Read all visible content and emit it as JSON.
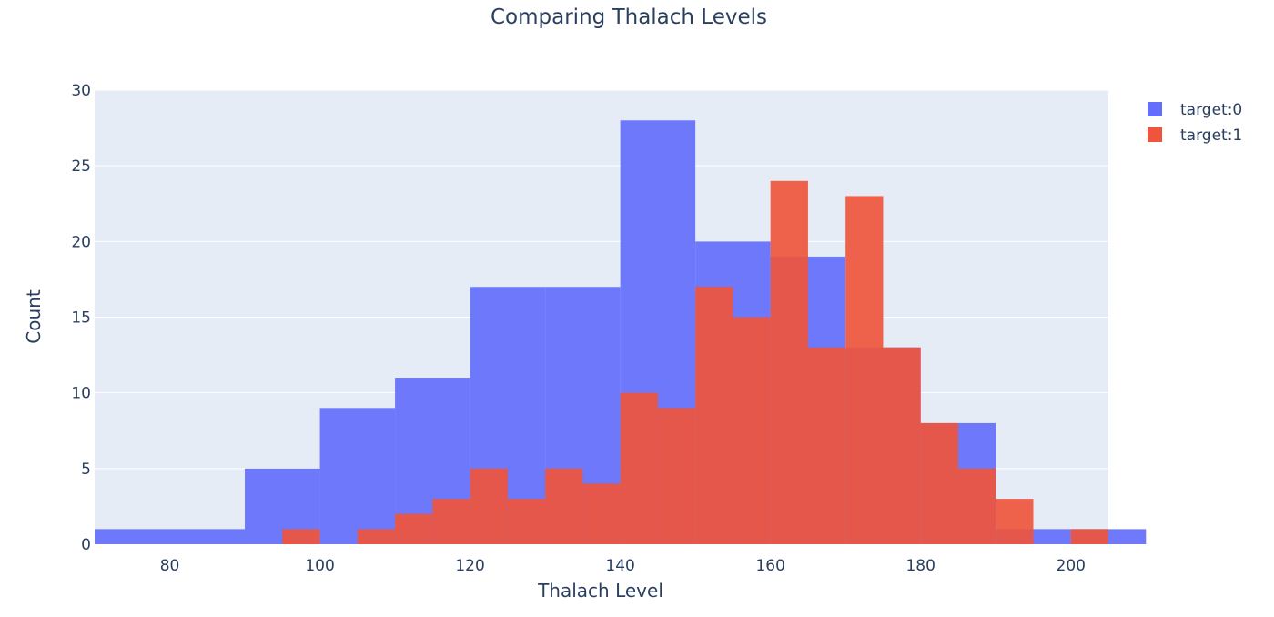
{
  "chart_data": {
    "type": "bar",
    "subtype": "overlaid-histogram",
    "title": "Comparing Thalach Levels",
    "xlabel": "Thalach Level",
    "ylabel": "Count",
    "xlim": [
      70,
      205
    ],
    "ylim": [
      0,
      30
    ],
    "x_ticks": [
      80,
      100,
      120,
      140,
      160,
      180,
      200
    ],
    "y_ticks": [
      0,
      5,
      10,
      15,
      20,
      25,
      30
    ],
    "grid": true,
    "legend_position": "top-right",
    "plot_background": "#e5ecf6",
    "series": [
      {
        "name": "target:0",
        "color": "#636efa",
        "bin_size": 10,
        "bin_starts": [
          70,
          80,
          90,
          100,
          110,
          120,
          130,
          140,
          150,
          160,
          170,
          180,
          190,
          200
        ],
        "values": [
          1,
          1,
          5,
          9,
          11,
          17,
          17,
          28,
          20,
          19,
          13,
          8,
          1,
          1
        ]
      },
      {
        "name": "target:1",
        "color": "#ef553b",
        "bin_size": 5,
        "bin_starts": [
          95,
          105,
          110,
          115,
          120,
          125,
          130,
          135,
          140,
          145,
          150,
          155,
          160,
          165,
          170,
          175,
          180,
          185,
          190,
          200
        ],
        "values": [
          1,
          1,
          2,
          3,
          5,
          3,
          5,
          4,
          10,
          9,
          17,
          15,
          24,
          13,
          23,
          13,
          8,
          5,
          3,
          1
        ]
      }
    ]
  }
}
